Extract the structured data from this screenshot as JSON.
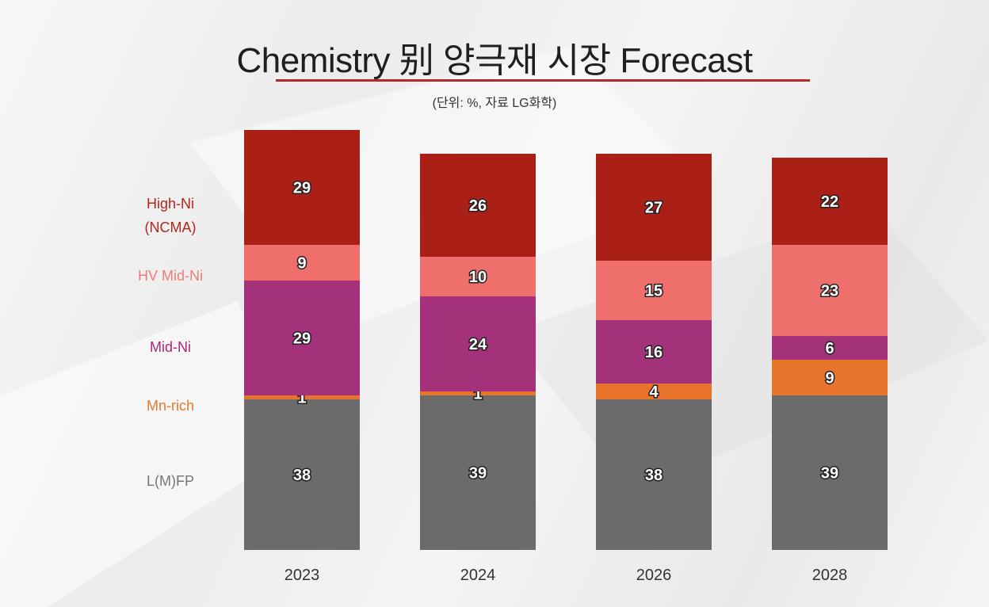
{
  "header": {
    "title": "Chemistry 别 양극재 시장 Forecast",
    "subtitle": "(단위: %, 자료 LG화학)"
  },
  "legend": [
    {
      "label_line1": "High-Ni",
      "label_line2": "(NCMA)",
      "color": "#b3261e"
    },
    {
      "label_line1": "HV Mid-Ni",
      "label_line2": "",
      "color": "#f17a7a"
    },
    {
      "label_line1": "Mid-Ni",
      "label_line2": "",
      "color": "#b0257a"
    },
    {
      "label_line1": "Mn-rich",
      "label_line2": "",
      "color": "#e8782f"
    },
    {
      "label_line1": "L(M)FP",
      "label_line2": "",
      "color": "#777777"
    }
  ],
  "chart_data": {
    "type": "bar",
    "stacked": true,
    "categories": [
      "2023",
      "2024",
      "2026",
      "2028"
    ],
    "series": [
      {
        "name": "L(M)FP",
        "values": [
          38,
          39,
          38,
          39
        ],
        "color": "#6b6b6b"
      },
      {
        "name": "Mn-rich",
        "values": [
          1,
          1,
          4,
          9
        ],
        "color": "#e8742c"
      },
      {
        "name": "Mid-Ni",
        "values": [
          29,
          24,
          16,
          6
        ],
        "color": "#a3327a"
      },
      {
        "name": "HV Mid-Ni",
        "values": [
          9,
          10,
          15,
          23
        ],
        "color": "#ee6f6c"
      },
      {
        "name": "High-Ni (NCMA)",
        "values": [
          29,
          26,
          27,
          22
        ],
        "color": "#aa2017"
      }
    ],
    "title": "Chemistry 别 양극재 시장 Forecast",
    "subtitle": "(단위: %, 자료 LG화학)",
    "xlabel": "",
    "ylabel": "",
    "grid": false,
    "legend_position": "left"
  }
}
